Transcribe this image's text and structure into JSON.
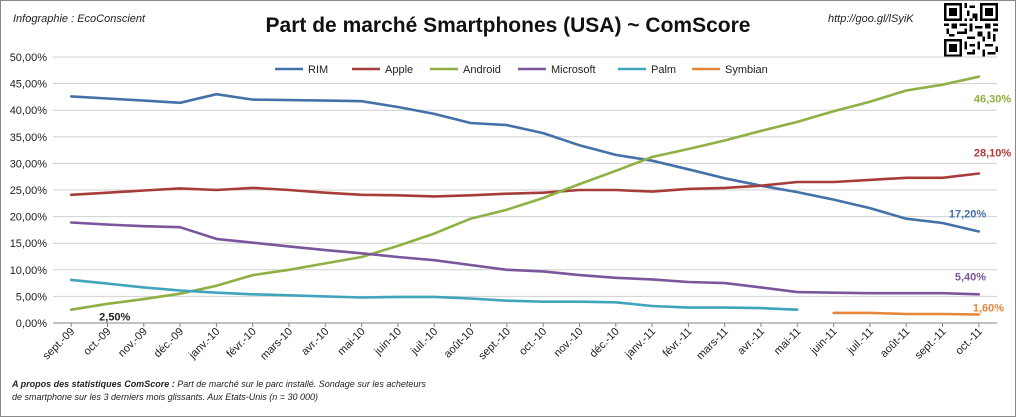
{
  "header": {
    "credit": "Infographie : EcoConscient",
    "title": "Part de marché Smartphones (USA) ~ ComScore",
    "url": "http://goo.gl/lSyiK"
  },
  "footnote": {
    "label": "A propos des statistiques ComScore :",
    "text": "Part de marché sur le parc installé. Sondage sur les acheteurs de smartphone sur les 3 derniers mois glissants. Aux Etats-Unis (n = 30 000)"
  },
  "chart_data": {
    "type": "line",
    "title": "Part de marché Smartphones (USA) ~ ComScore",
    "xlabel": "",
    "ylabel": "",
    "ylim": [
      0,
      0.5
    ],
    "yticks": [
      "0,00%",
      "5,00%",
      "10,00%",
      "15,00%",
      "20,00%",
      "25,00%",
      "30,00%",
      "35,00%",
      "40,00%",
      "45,00%",
      "50,00%"
    ],
    "legend_position": "top",
    "grid": true,
    "categories": [
      "sept.-09",
      "oct.-09",
      "nov.-09",
      "déc.-09",
      "janv.-10",
      "févr.-10",
      "mars-10",
      "avr.-10",
      "mai-10",
      "juin-10",
      "juil.-10",
      "août-10",
      "sept.-10",
      "oct.-10",
      "nov.-10",
      "déc.-10",
      "janv.-11",
      "févr.-11",
      "mars-11",
      "avr.-11",
      "mai-11",
      "juin-11",
      "juil.-11",
      "août-11",
      "sept.-11",
      "oct.-11"
    ],
    "series": [
      {
        "name": "RIM",
        "color": "#4472a8",
        "values": [
          0.426,
          0.422,
          0.418,
          0.414,
          0.43,
          0.42,
          0.419,
          0.418,
          0.417,
          0.406,
          0.393,
          0.376,
          0.372,
          0.357,
          0.334,
          0.316,
          0.305,
          0.289,
          0.272,
          0.258,
          0.246,
          0.232,
          0.216,
          0.196,
          0.188,
          0.172
        ]
      },
      {
        "name": "Apple",
        "color": "#a63d3a",
        "values": [
          0.241,
          0.245,
          0.249,
          0.253,
          0.25,
          0.254,
          0.25,
          0.245,
          0.241,
          0.24,
          0.238,
          0.24,
          0.243,
          0.245,
          0.25,
          0.25,
          0.247,
          0.252,
          0.254,
          0.258,
          0.265,
          0.265,
          0.269,
          0.273,
          0.273,
          0.281
        ]
      },
      {
        "name": "Android",
        "color": "#8eb045",
        "values": [
          0.025,
          0.036,
          0.045,
          0.055,
          0.07,
          0.09,
          0.1,
          0.112,
          0.124,
          0.145,
          0.168,
          0.196,
          0.213,
          0.235,
          0.261,
          0.286,
          0.312,
          0.327,
          0.343,
          0.361,
          0.378,
          0.398,
          0.416,
          0.437,
          0.448,
          0.463
        ]
      },
      {
        "name": "Microsoft",
        "color": "#7a569c",
        "values": [
          0.189,
          0.185,
          0.182,
          0.18,
          0.158,
          0.151,
          0.144,
          0.137,
          0.131,
          0.124,
          0.118,
          0.109,
          0.1,
          0.097,
          0.09,
          0.085,
          0.082,
          0.077,
          0.075,
          0.067,
          0.058,
          0.057,
          0.056,
          0.056,
          0.056,
          0.054
        ]
      },
      {
        "name": "Palm",
        "color": "#41a4bd",
        "values": [
          0.081,
          0.074,
          0.067,
          0.061,
          0.057,
          0.054,
          0.052,
          0.05,
          0.048,
          0.049,
          0.049,
          0.046,
          0.042,
          0.04,
          0.04,
          0.039,
          0.032,
          0.029,
          0.029,
          0.028,
          0.025,
          null,
          null,
          null,
          null,
          null
        ]
      },
      {
        "name": "Symbian",
        "color": "#e5863b",
        "values": [
          null,
          null,
          null,
          null,
          null,
          null,
          null,
          null,
          null,
          null,
          null,
          null,
          null,
          null,
          null,
          null,
          null,
          null,
          null,
          null,
          null,
          0.019,
          0.019,
          0.017,
          0.017,
          0.016
        ]
      }
    ],
    "annotations": [
      {
        "series": "Android",
        "index": 0,
        "text": "2,50%",
        "color": "#222222"
      },
      {
        "series": "Android",
        "index": 25,
        "text": "46,30%",
        "color": "#8eb045"
      },
      {
        "series": "Apple",
        "index": 25,
        "text": "28,10%",
        "color": "#a63d3a"
      },
      {
        "series": "RIM",
        "index": 25,
        "text": "17,20%",
        "color": "#4472a8"
      },
      {
        "series": "Microsoft",
        "index": 25,
        "text": "5,40%",
        "color": "#7a569c"
      },
      {
        "series": "Symbian",
        "index": 25,
        "text": "1,60%",
        "color": "#e5863b"
      }
    ]
  }
}
